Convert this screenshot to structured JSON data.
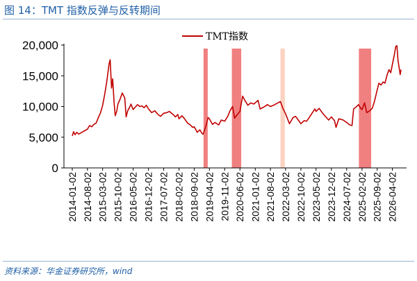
{
  "figure": {
    "title": "图 14：TMT 指数反弹与反转期间",
    "source": "资料来源：华金证券研究所，wind"
  },
  "chart_data": {
    "type": "line",
    "title": "",
    "xlabel": "",
    "ylabel": "",
    "ylim": [
      0,
      20000
    ],
    "yticks": [
      "0",
      "5,000",
      "10,000",
      "15,000",
      "20,000"
    ],
    "ytick_values": [
      0,
      5000,
      10000,
      15000,
      20000
    ],
    "xticks": [
      "2014-01-02",
      "2014-08-02",
      "2015-03-02",
      "2015-10-02",
      "2016-05-02",
      "2016-12-02",
      "2017-07-02",
      "2018-02-02",
      "2018-09-02",
      "2019-04-02",
      "2019-11-02",
      "2020-06-02",
      "2021-01-02",
      "2021-08-02",
      "2022-03-02",
      "2022-10-02",
      "2023-05-02",
      "2023-12-02",
      "2024-07-02",
      "2025-02-02",
      "2025-09-02",
      "2026-04-02"
    ],
    "legend": {
      "position": "top-center",
      "entries": [
        "TMT指数"
      ]
    },
    "grid": false,
    "series": [
      {
        "name": "TMT指数",
        "color": "#c00000",
        "points": [
          [
            "2014-01-02",
            5200
          ],
          [
            "2014-01-20",
            5900
          ],
          [
            "2014-02-10",
            5400
          ],
          [
            "2014-03-05",
            5800
          ],
          [
            "2014-04-01",
            5500
          ],
          [
            "2014-05-01",
            5700
          ],
          [
            "2014-06-01",
            5900
          ],
          [
            "2014-07-01",
            6100
          ],
          [
            "2014-08-02",
            6300
          ],
          [
            "2014-09-01",
            6900
          ],
          [
            "2014-10-01",
            6700
          ],
          [
            "2014-11-01",
            7100
          ],
          [
            "2014-12-01",
            7300
          ],
          [
            "2015-01-01",
            8200
          ],
          [
            "2015-02-01",
            9000
          ],
          [
            "2015-03-02",
            10200
          ],
          [
            "2015-04-01",
            12000
          ],
          [
            "2015-05-01",
            14200
          ],
          [
            "2015-06-01",
            17000
          ],
          [
            "2015-06-15",
            17600
          ],
          [
            "2015-07-05",
            13000
          ],
          [
            "2015-07-20",
            14500
          ],
          [
            "2015-08-10",
            10600
          ],
          [
            "2015-08-25",
            8500
          ],
          [
            "2015-09-15",
            9200
          ],
          [
            "2015-10-02",
            10400
          ],
          [
            "2015-11-01",
            11200
          ],
          [
            "2015-12-01",
            12200
          ],
          [
            "2016-01-05",
            11400
          ],
          [
            "2016-01-25",
            8300
          ],
          [
            "2016-02-15",
            9300
          ],
          [
            "2016-03-10",
            9800
          ],
          [
            "2016-04-01",
            10400
          ],
          [
            "2016-05-02",
            9500
          ],
          [
            "2016-06-01",
            9900
          ],
          [
            "2016-07-01",
            10300
          ],
          [
            "2016-08-01",
            10000
          ],
          [
            "2016-09-01",
            10100
          ],
          [
            "2016-10-01",
            9800
          ],
          [
            "2016-11-01",
            10200
          ],
          [
            "2016-12-02",
            9600
          ],
          [
            "2017-01-15",
            9000
          ],
          [
            "2017-03-01",
            9300
          ],
          [
            "2017-04-15",
            8700
          ],
          [
            "2017-05-20",
            8400
          ],
          [
            "2017-07-02",
            8900
          ],
          [
            "2017-08-15",
            9000
          ],
          [
            "2017-09-20",
            9200
          ],
          [
            "2017-11-01",
            8800
          ],
          [
            "2017-12-15",
            8300
          ],
          [
            "2018-01-15",
            8700
          ],
          [
            "2018-02-02",
            8000
          ],
          [
            "2018-03-15",
            8500
          ],
          [
            "2018-04-20",
            8000
          ],
          [
            "2018-06-01",
            7300
          ],
          [
            "2018-07-10",
            7000
          ],
          [
            "2018-08-10",
            6600
          ],
          [
            "2018-09-02",
            6700
          ],
          [
            "2018-10-15",
            5800
          ],
          [
            "2018-11-20",
            6200
          ],
          [
            "2018-12-20",
            5600
          ],
          [
            "2019-01-05",
            5500
          ],
          [
            "2019-02-15",
            6900
          ],
          [
            "2019-03-15",
            8200
          ],
          [
            "2019-04-02",
            8000
          ],
          [
            "2019-05-15",
            7100
          ],
          [
            "2019-06-20",
            7400
          ],
          [
            "2019-08-10",
            7000
          ],
          [
            "2019-09-15",
            7800
          ],
          [
            "2019-11-02",
            7600
          ],
          [
            "2019-12-15",
            8400
          ],
          [
            "2020-01-15",
            9300
          ],
          [
            "2020-02-20",
            10000
          ],
          [
            "2020-03-20",
            8100
          ],
          [
            "2020-04-20",
            8600
          ],
          [
            "2020-06-02",
            9200
          ],
          [
            "2020-07-10",
            11700
          ],
          [
            "2020-08-10",
            11000
          ],
          [
            "2020-09-20",
            10200
          ],
          [
            "2020-11-01",
            10600
          ],
          [
            "2020-12-10",
            10400
          ],
          [
            "2021-01-02",
            10600
          ],
          [
            "2021-02-10",
            11000
          ],
          [
            "2021-03-10",
            9600
          ],
          [
            "2021-05-01",
            9900
          ],
          [
            "2021-06-20",
            10300
          ],
          [
            "2021-08-02",
            10000
          ],
          [
            "2021-09-15",
            10200
          ],
          [
            "2021-11-15",
            10600
          ],
          [
            "2021-12-20",
            10800
          ],
          [
            "2022-01-20",
            9800
          ],
          [
            "2022-03-02",
            8800
          ],
          [
            "2022-04-25",
            7200
          ],
          [
            "2022-06-15",
            8200
          ],
          [
            "2022-07-20",
            8400
          ],
          [
            "2022-08-20",
            7900
          ],
          [
            "2022-10-02",
            7200
          ],
          [
            "2022-11-15",
            7700
          ],
          [
            "2022-12-20",
            7600
          ],
          [
            "2023-01-20",
            8100
          ],
          [
            "2023-03-01",
            8800
          ],
          [
            "2023-04-15",
            9600
          ],
          [
            "2023-05-02",
            9200
          ],
          [
            "2023-06-15",
            9700
          ],
          [
            "2023-08-01",
            8900
          ],
          [
            "2023-09-15",
            8300
          ],
          [
            "2023-10-25",
            7800
          ],
          [
            "2023-12-02",
            8300
          ],
          [
            "2024-01-15",
            7700
          ],
          [
            "2024-02-05",
            6600
          ],
          [
            "2024-03-15",
            8000
          ],
          [
            "2024-05-15",
            7800
          ],
          [
            "2024-07-02",
            7400
          ],
          [
            "2024-08-15",
            7000
          ],
          [
            "2024-09-15",
            6900
          ],
          [
            "2024-10-08",
            9600
          ],
          [
            "2024-11-10",
            9900
          ],
          [
            "2024-12-15",
            10300
          ],
          [
            "2025-01-15",
            9700
          ],
          [
            "2025-02-02",
            9500
          ],
          [
            "2025-03-10",
            10600
          ],
          [
            "2025-04-08",
            9000
          ],
          [
            "2025-05-20",
            9300
          ],
          [
            "2025-06-25",
            9700
          ],
          [
            "2025-07-25",
            10800
          ],
          [
            "2025-08-25",
            12300
          ],
          [
            "2025-09-25",
            13800
          ],
          [
            "2025-10-25",
            13500
          ],
          [
            "2025-11-25",
            14000
          ],
          [
            "2025-12-20",
            13800
          ],
          [
            "2026-01-20",
            15200
          ],
          [
            "2026-02-15",
            16000
          ],
          [
            "2026-03-10",
            15500
          ],
          [
            "2026-04-02",
            16800
          ],
          [
            "2026-05-01",
            18500
          ],
          [
            "2026-05-20",
            19800
          ],
          [
            "2026-06-05",
            19900
          ],
          [
            "2026-06-20",
            17500
          ],
          [
            "2026-07-05",
            16400
          ],
          [
            "2026-07-20",
            15200
          ],
          [
            "2026-08-01",
            16000
          ]
        ]
      }
    ],
    "shaded_periods": [
      {
        "start": "2019-01-10",
        "end": "2019-03-10",
        "color": "#f08080"
      },
      {
        "start": "2020-02-10",
        "end": "2020-06-20",
        "color": "#f08080"
      },
      {
        "start": "2021-12-20",
        "end": "2022-02-20",
        "color": "#fbd3c3"
      },
      {
        "start": "2024-12-20",
        "end": "2025-06-10",
        "color": "#f08080"
      }
    ]
  }
}
